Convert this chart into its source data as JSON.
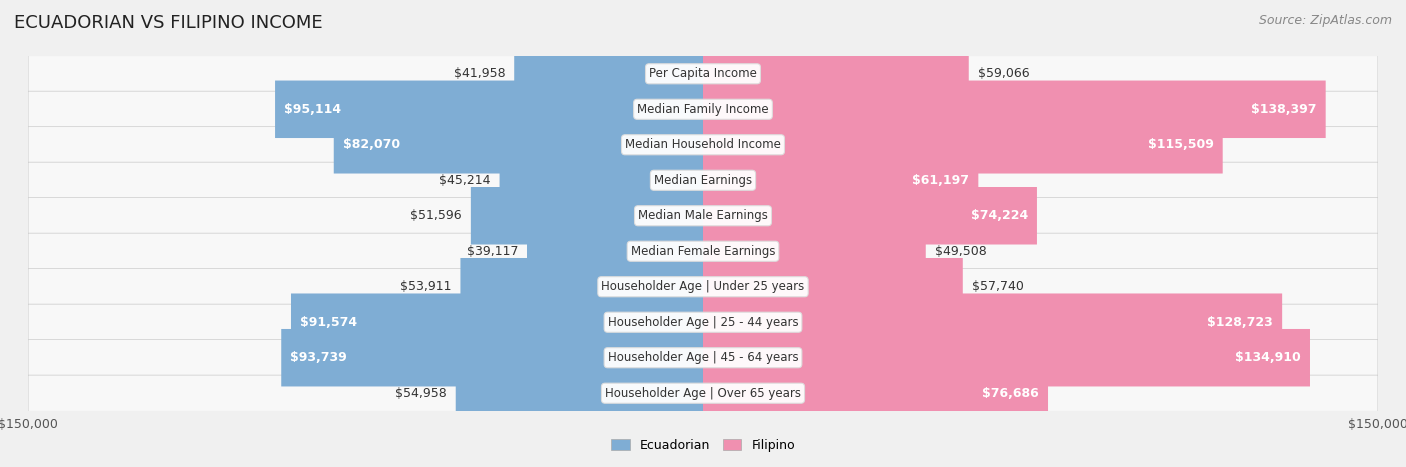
{
  "title": "ECUADORIAN VS FILIPINO INCOME",
  "source": "Source: ZipAtlas.com",
  "categories": [
    "Per Capita Income",
    "Median Family Income",
    "Median Household Income",
    "Median Earnings",
    "Median Male Earnings",
    "Median Female Earnings",
    "Householder Age | Under 25 years",
    "Householder Age | 25 - 44 years",
    "Householder Age | 45 - 64 years",
    "Householder Age | Over 65 years"
  ],
  "ecuadorian": [
    41958,
    95114,
    82070,
    45214,
    51596,
    39117,
    53911,
    91574,
    93739,
    54958
  ],
  "filipino": [
    59066,
    138397,
    115509,
    61197,
    74224,
    49508,
    57740,
    128723,
    134910,
    76686
  ],
  "max_val": 150000,
  "blue_color": "#7fadd4",
  "pink_color": "#f090b0",
  "blue_dark": "#6090c0",
  "pink_dark": "#e06890",
  "bg_color": "#f0f0f0",
  "row_bg": "#f8f8f8",
  "label_bg": "#ffffff",
  "title_fontsize": 13,
  "source_fontsize": 9,
  "bar_label_fontsize": 9,
  "category_fontsize": 8.5
}
